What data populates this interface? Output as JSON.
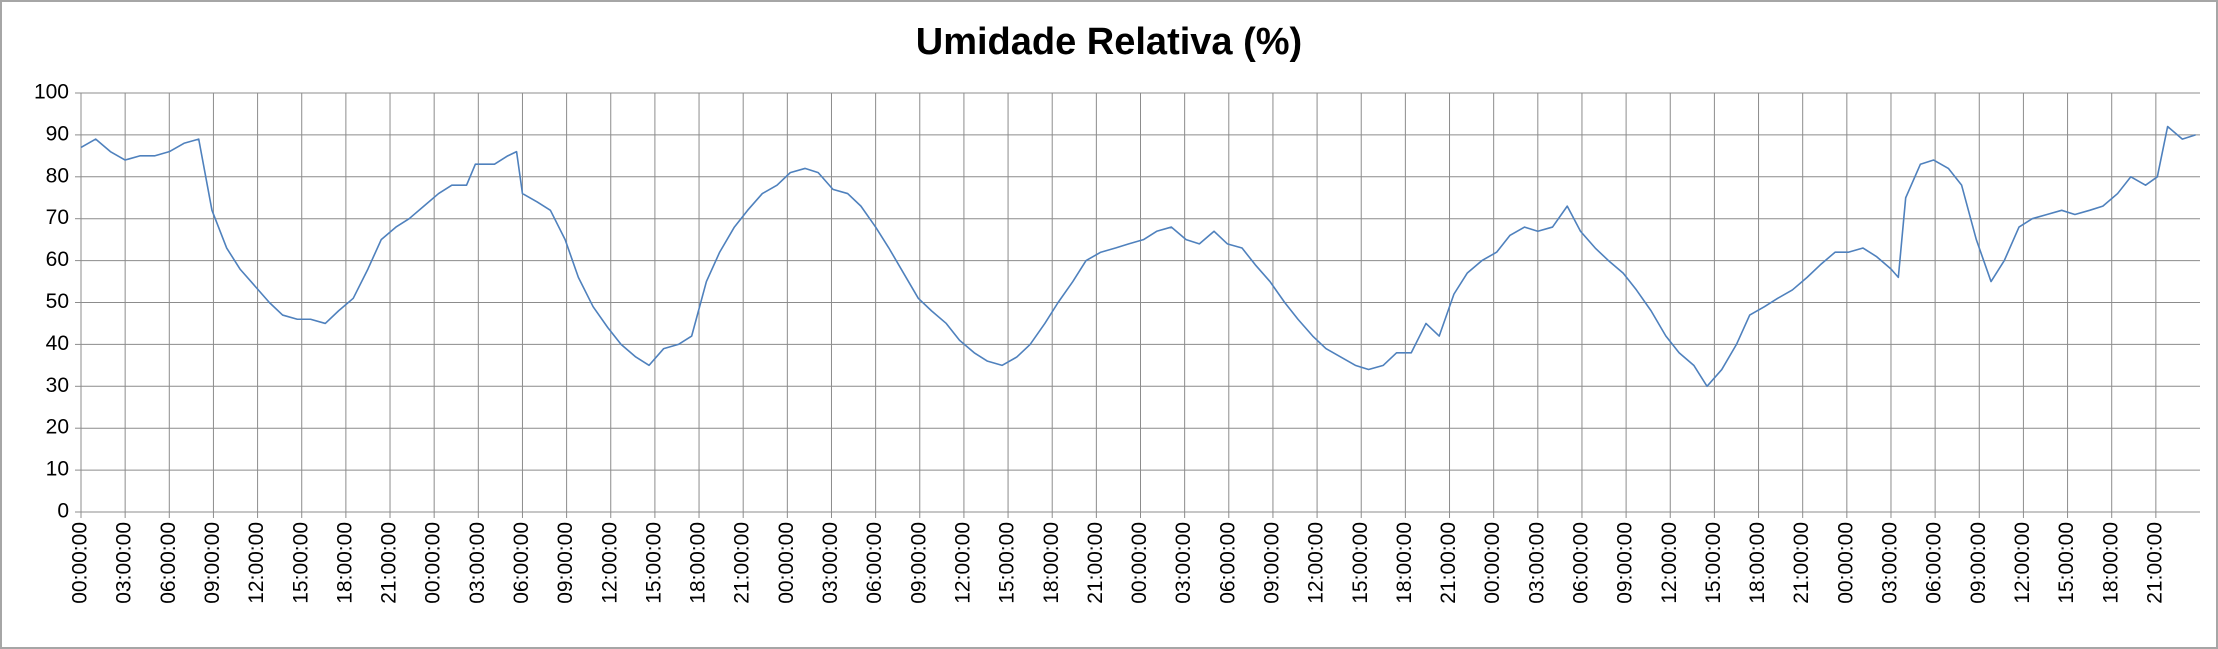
{
  "chart_data": {
    "type": "line",
    "title": "Umidade Relativa (%)",
    "x": [
      0,
      1,
      2,
      3,
      4,
      5,
      6,
      7,
      8,
      8.9,
      9.9,
      10.8,
      11.8,
      12.8,
      13.7,
      14.7,
      15.6,
      16.6,
      17.5,
      18.5,
      19.5,
      20.4,
      21.4,
      22.3,
      23.3,
      24.3,
      25.2,
      26.2,
      26.8,
      28.1,
      29,
      29.6,
      30,
      31,
      31.9,
      32.9,
      33.8,
      34.8,
      35.8,
      36.7,
      37.7,
      38.6,
      39.6,
      40.6,
      41.5,
      42.5,
      43.4,
      44.4,
      45.3,
      46.3,
      47.3,
      48.2,
      49.2,
      50.1,
      51.1,
      52.1,
      53,
      54,
      54.9,
      55.9,
      56.9,
      57.8,
      58.8,
      59.7,
      60.7,
      61.6,
      62.6,
      63.6,
      64.5,
      65.5,
      66.4,
      67.4,
      68.3,
      69.3,
      70.3,
      71.2,
      72.2,
      73.1,
      74.1,
      75.1,
      76,
      77,
      77.9,
      78.9,
      79.8,
      80.8,
      81.8,
      82.7,
      83.7,
      84.6,
      85.6,
      86.6,
      87.5,
      88.5,
      89.4,
      90.4,
      91.4,
      92.3,
      93.3,
      94.2,
      95.2,
      96.2,
      97.1,
      98.1,
      99,
      100,
      101,
      101.9,
      102.9,
      103.8,
      104.8,
      105.7,
      106.7,
      107.7,
      108.6,
      109.6,
      110.5,
      111.5,
      112.5,
      113.4,
      114.4,
      115.3,
      116.3,
      117.3,
      118.2,
      119.2,
      120.1,
      121.1,
      122,
      123,
      123.5,
      124,
      125,
      125.9,
      126.9,
      127.8,
      128.8,
      129.8,
      130.7,
      131.7,
      132.6,
      133.6,
      134.6,
      135.5,
      136.5,
      137.4,
      138.4,
      139.3,
      140.3,
      141.1,
      141.8,
      142.8,
      143.7
    ],
    "series": [
      {
        "name": "Umidade Relativa (%)",
        "color": "#4f81bd",
        "values": [
          87,
          89,
          86,
          84,
          85,
          85,
          86,
          88,
          89,
          72,
          63,
          58,
          54,
          50,
          47,
          46,
          46,
          45,
          48,
          51,
          58,
          65,
          68,
          70,
          73,
          76,
          78,
          78,
          83,
          83,
          85,
          86,
          76,
          74,
          72,
          65,
          56,
          49,
          44,
          40,
          37,
          35,
          39,
          40,
          42,
          55,
          62,
          68,
          72,
          76,
          78,
          81,
          82,
          81,
          77,
          76,
          73,
          68,
          63,
          57,
          51,
          48,
          45,
          41,
          38,
          36,
          35,
          37,
          40,
          45,
          50,
          55,
          60,
          62,
          63,
          64,
          65,
          67,
          68,
          65,
          64,
          67,
          64,
          63,
          59,
          55,
          50,
          46,
          42,
          39,
          37,
          35,
          34,
          35,
          38,
          38,
          45,
          42,
          52,
          57,
          60,
          62,
          66,
          68,
          67,
          68,
          73,
          67,
          63,
          60,
          57,
          53,
          48,
          42,
          38,
          35,
          30,
          34,
          40,
          47,
          49,
          51,
          53,
          56,
          59,
          62,
          62,
          63,
          61,
          58,
          56,
          75,
          83,
          84,
          82,
          78,
          65,
          55,
          60,
          68,
          70,
          71,
          72,
          71,
          72,
          73,
          76,
          80,
          78,
          80,
          92,
          89,
          90
        ]
      }
    ],
    "xlim": [
      0,
      144
    ],
    "xticks": [
      {
        "value": 0,
        "label": "00:00:00"
      },
      {
        "value": 3,
        "label": "03:00:00"
      },
      {
        "value": 6,
        "label": "06:00:00"
      },
      {
        "value": 9,
        "label": "09:00:00"
      },
      {
        "value": 12,
        "label": "12:00:00"
      },
      {
        "value": 15,
        "label": "15:00:00"
      },
      {
        "value": 18,
        "label": "18:00:00"
      },
      {
        "value": 21,
        "label": "21:00:00"
      },
      {
        "value": 24,
        "label": "00:00:00"
      },
      {
        "value": 27,
        "label": "03:00:00"
      },
      {
        "value": 30,
        "label": "06:00:00"
      },
      {
        "value": 33,
        "label": "09:00:00"
      },
      {
        "value": 36,
        "label": "12:00:00"
      },
      {
        "value": 39,
        "label": "15:00:00"
      },
      {
        "value": 42,
        "label": "18:00:00"
      },
      {
        "value": 45,
        "label": "21:00:00"
      },
      {
        "value": 48,
        "label": "00:00:00"
      },
      {
        "value": 51,
        "label": "03:00:00"
      },
      {
        "value": 54,
        "label": "06:00:00"
      },
      {
        "value": 57,
        "label": "09:00:00"
      },
      {
        "value": 60,
        "label": "12:00:00"
      },
      {
        "value": 63,
        "label": "15:00:00"
      },
      {
        "value": 66,
        "label": "18:00:00"
      },
      {
        "value": 69,
        "label": "21:00:00"
      },
      {
        "value": 72,
        "label": "00:00:00"
      },
      {
        "value": 75,
        "label": "03:00:00"
      },
      {
        "value": 78,
        "label": "06:00:00"
      },
      {
        "value": 81,
        "label": "09:00:00"
      },
      {
        "value": 84,
        "label": "12:00:00"
      },
      {
        "value": 87,
        "label": "15:00:00"
      },
      {
        "value": 90,
        "label": "18:00:00"
      },
      {
        "value": 93,
        "label": "21:00:00"
      },
      {
        "value": 96,
        "label": "00:00:00"
      },
      {
        "value": 99,
        "label": "03:00:00"
      },
      {
        "value": 102,
        "label": "06:00:00"
      },
      {
        "value": 105,
        "label": "09:00:00"
      },
      {
        "value": 108,
        "label": "12:00:00"
      },
      {
        "value": 111,
        "label": "15:00:00"
      },
      {
        "value": 114,
        "label": "18:00:00"
      },
      {
        "value": 117,
        "label": "21:00:00"
      },
      {
        "value": 120,
        "label": "00:00:00"
      },
      {
        "value": 123,
        "label": "03:00:00"
      },
      {
        "value": 126,
        "label": "06:00:00"
      },
      {
        "value": 129,
        "label": "09:00:00"
      },
      {
        "value": 132,
        "label": "12:00:00"
      },
      {
        "value": 135,
        "label": "15:00:00"
      },
      {
        "value": 138,
        "label": "18:00:00"
      },
      {
        "value": 141,
        "label": "21:00:00"
      }
    ],
    "ylim": [
      0,
      100
    ],
    "yticks": [
      0,
      10,
      20,
      30,
      40,
      50,
      60,
      70,
      80,
      90,
      100
    ],
    "grid": true
  }
}
